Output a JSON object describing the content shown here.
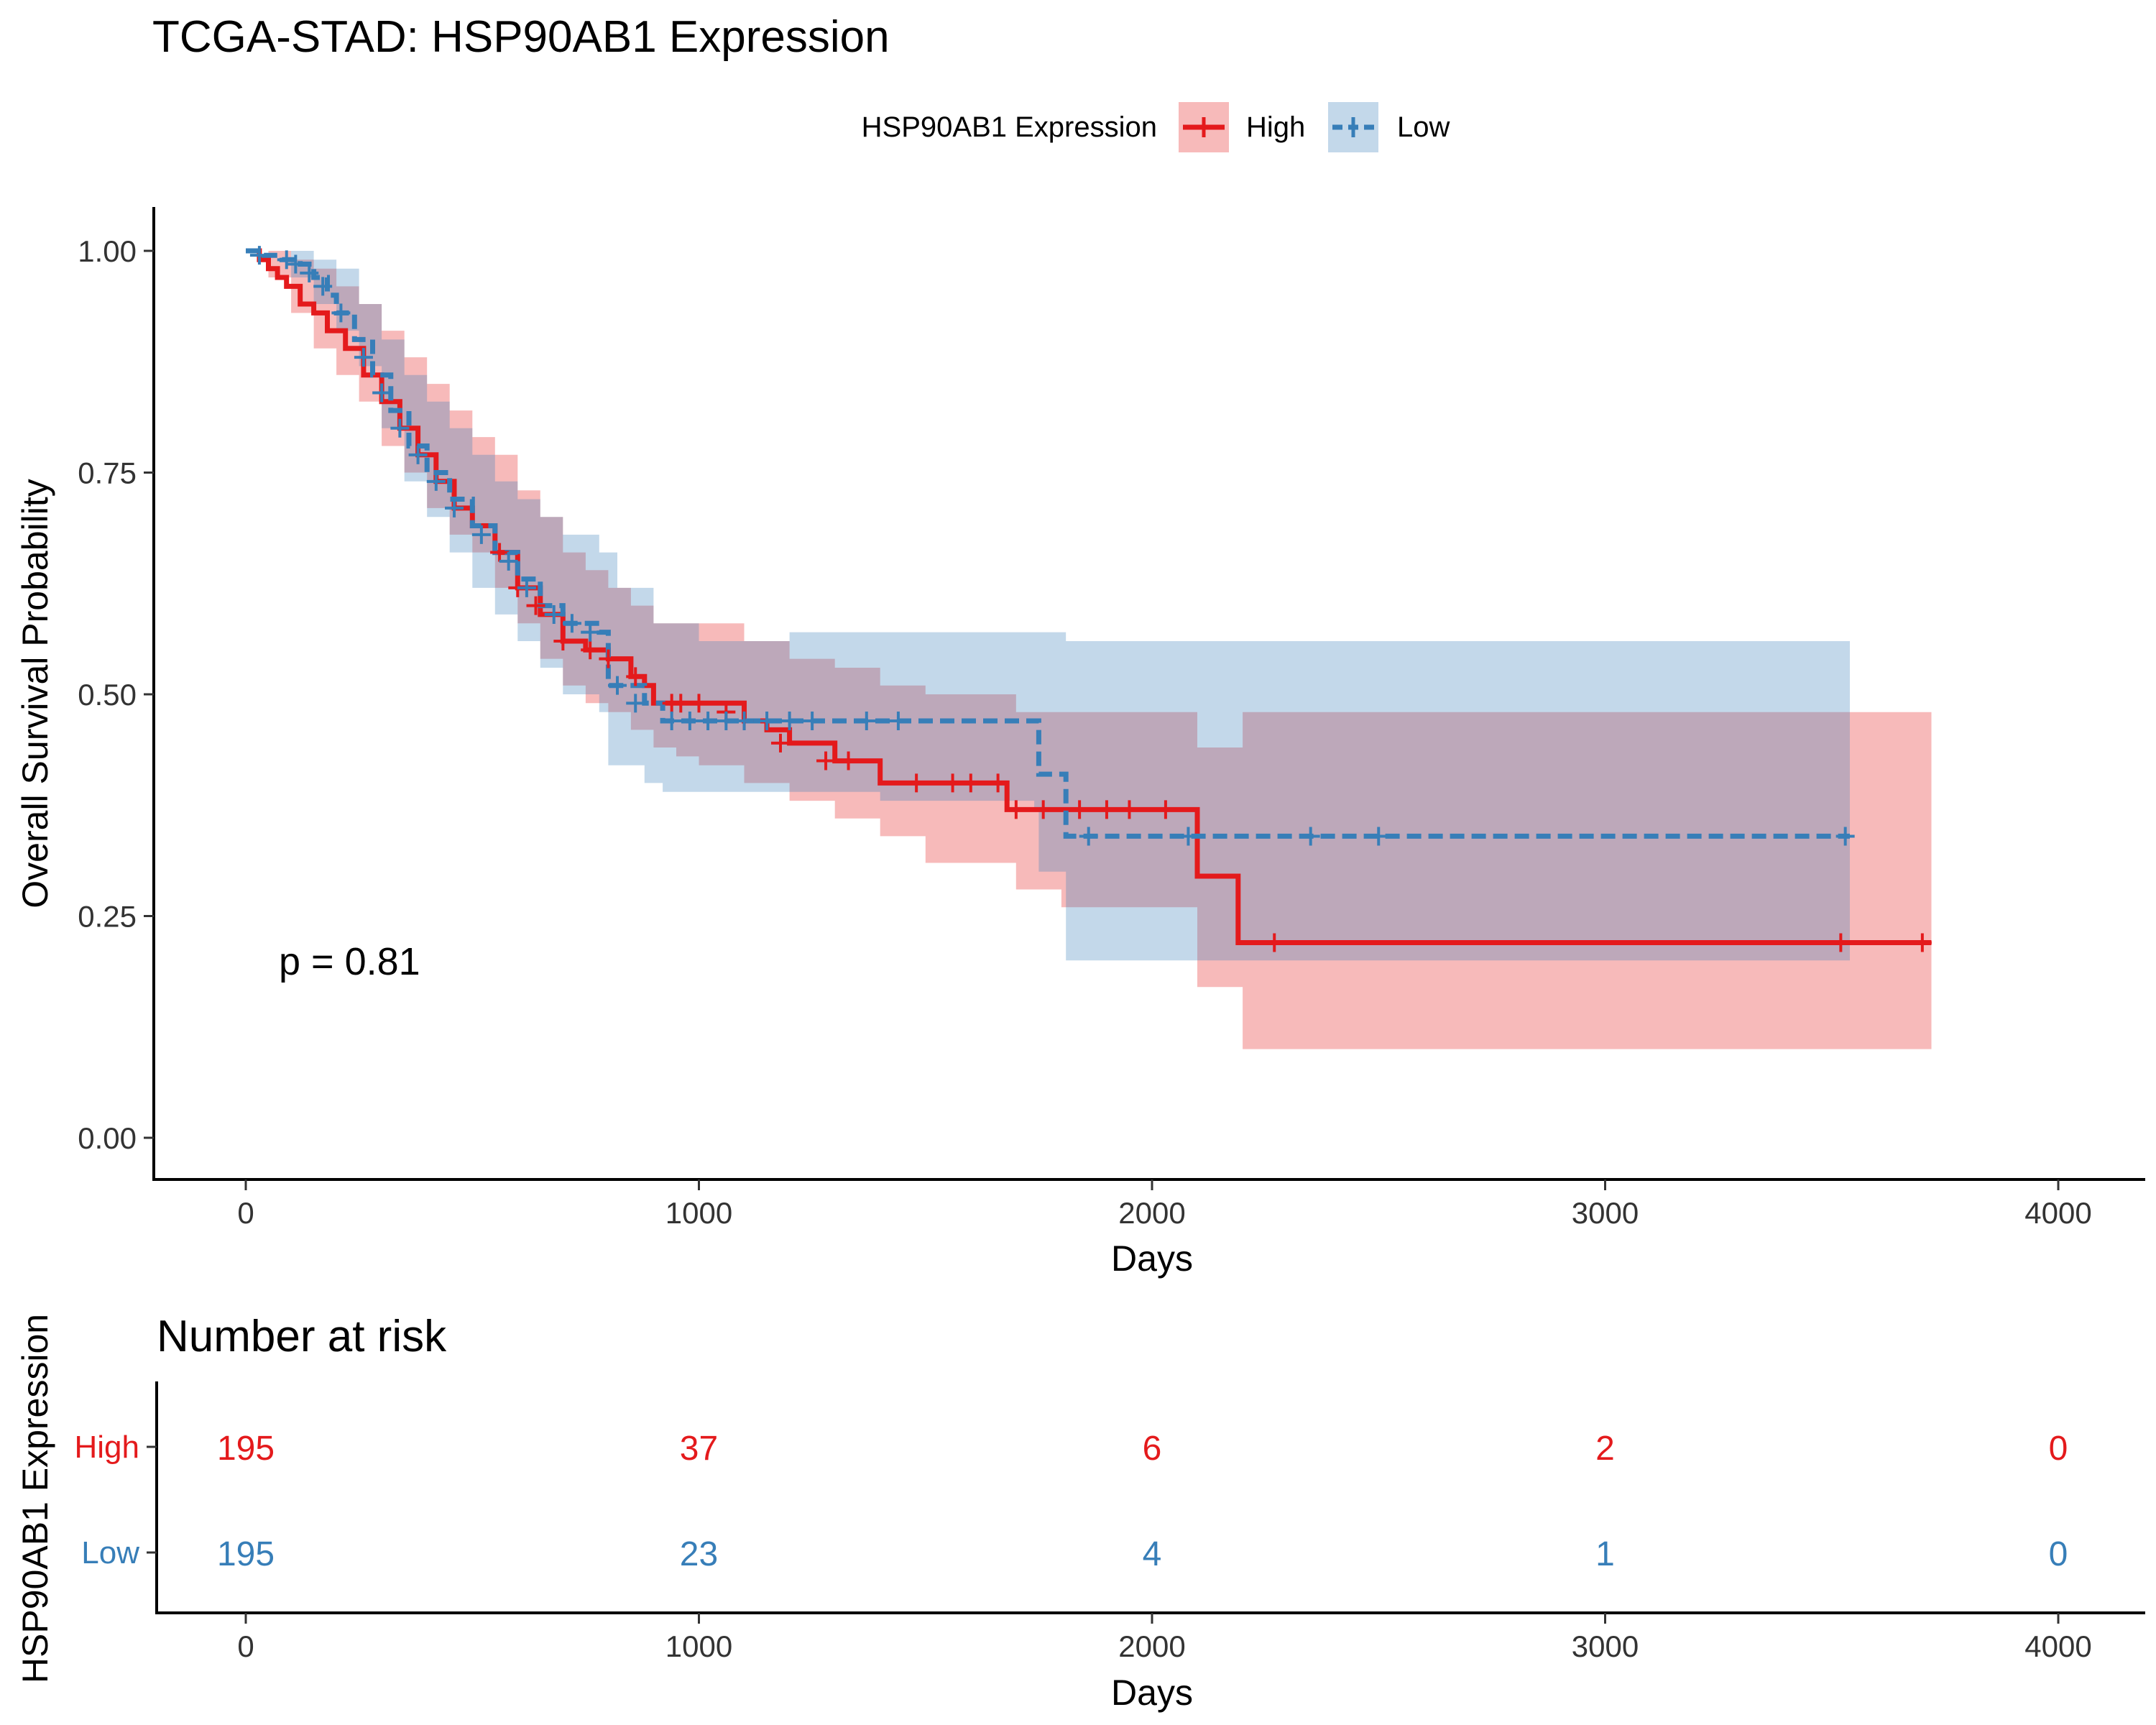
{
  "chart_data": [
    {
      "type": "line",
      "subtype": "kaplan-meier",
      "title": "TCGA-STAD: HSP90AB1 Expression",
      "xlabel": "Days",
      "ylabel": "Overall Survival Probability",
      "xlim": [
        -200,
        4200
      ],
      "ylim": [
        -0.05,
        1.05
      ],
      "xticks": [
        0,
        1000,
        2000,
        3000,
        4000
      ],
      "yticks": [
        "0.00",
        "0.25",
        "0.50",
        "0.75",
        "1.00"
      ],
      "grid": false,
      "legend": {
        "title": "HSP90AB1 Expression",
        "position": "top",
        "entries": [
          "High",
          "Low"
        ]
      },
      "annotation": "p = 0.81",
      "series": [
        {
          "name": "High",
          "color": "#E41A1C",
          "line_style": "solid",
          "curve": [
            [
              0,
              1.0
            ],
            [
              30,
              0.99
            ],
            [
              50,
              0.98
            ],
            [
              70,
              0.97
            ],
            [
              90,
              0.96
            ],
            [
              120,
              0.94
            ],
            [
              150,
              0.93
            ],
            [
              180,
              0.91
            ],
            [
              220,
              0.89
            ],
            [
              260,
              0.86
            ],
            [
              300,
              0.83
            ],
            [
              340,
              0.8
            ],
            [
              380,
              0.77
            ],
            [
              420,
              0.74
            ],
            [
              460,
              0.71
            ],
            [
              500,
              0.69
            ],
            [
              550,
              0.66
            ],
            [
              600,
              0.62
            ],
            [
              650,
              0.59
            ],
            [
              700,
              0.56
            ],
            [
              750,
              0.55
            ],
            [
              800,
              0.54
            ],
            [
              850,
              0.52
            ],
            [
              880,
              0.51
            ],
            [
              900,
              0.49
            ],
            [
              1000,
              0.49
            ],
            [
              1100,
              0.47
            ],
            [
              1150,
              0.46
            ],
            [
              1200,
              0.445
            ],
            [
              1300,
              0.425
            ],
            [
              1400,
              0.4
            ],
            [
              1500,
              0.4
            ],
            [
              1680,
              0.37
            ],
            [
              1800,
              0.37
            ],
            [
              2100,
              0.295
            ],
            [
              2190,
              0.22
            ],
            [
              2300,
              0.22
            ],
            [
              3000,
              0.22
            ],
            [
              3720,
              0.22
            ]
          ],
          "upper": [
            [
              0,
              1.0
            ],
            [
              50,
              1.0
            ],
            [
              100,
              0.99
            ],
            [
              150,
              0.98
            ],
            [
              200,
              0.96
            ],
            [
              250,
              0.94
            ],
            [
              300,
              0.91
            ],
            [
              350,
              0.88
            ],
            [
              400,
              0.85
            ],
            [
              450,
              0.82
            ],
            [
              500,
              0.79
            ],
            [
              550,
              0.77
            ],
            [
              600,
              0.73
            ],
            [
              650,
              0.7
            ],
            [
              700,
              0.66
            ],
            [
              750,
              0.64
            ],
            [
              800,
              0.62
            ],
            [
              850,
              0.6
            ],
            [
              900,
              0.58
            ],
            [
              950,
              0.58
            ],
            [
              1000,
              0.58
            ],
            [
              1100,
              0.56
            ],
            [
              1200,
              0.54
            ],
            [
              1300,
              0.53
            ],
            [
              1400,
              0.51
            ],
            [
              1500,
              0.5
            ],
            [
              1700,
              0.48
            ],
            [
              1800,
              0.48
            ],
            [
              2100,
              0.44
            ],
            [
              2200,
              0.48
            ],
            [
              3720,
              0.48
            ]
          ],
          "lower": [
            [
              0,
              1.0
            ],
            [
              50,
              0.97
            ],
            [
              100,
              0.93
            ],
            [
              150,
              0.89
            ],
            [
              200,
              0.86
            ],
            [
              250,
              0.83
            ],
            [
              300,
              0.78
            ],
            [
              350,
              0.75
            ],
            [
              400,
              0.71
            ],
            [
              450,
              0.68
            ],
            [
              500,
              0.66
            ],
            [
              550,
              0.62
            ],
            [
              600,
              0.58
            ],
            [
              650,
              0.54
            ],
            [
              700,
              0.51
            ],
            [
              750,
              0.49
            ],
            [
              800,
              0.48
            ],
            [
              850,
              0.46
            ],
            [
              900,
              0.44
            ],
            [
              950,
              0.43
            ],
            [
              1000,
              0.42
            ],
            [
              1100,
              0.4
            ],
            [
              1200,
              0.38
            ],
            [
              1300,
              0.36
            ],
            [
              1400,
              0.34
            ],
            [
              1500,
              0.31
            ],
            [
              1700,
              0.28
            ],
            [
              1800,
              0.26
            ],
            [
              2100,
              0.17
            ],
            [
              2200,
              0.1
            ],
            [
              3720,
              0.1
            ]
          ],
          "censored": [
            [
              560,
              0.66
            ],
            [
              600,
              0.62
            ],
            [
              640,
              0.6
            ],
            [
              700,
              0.56
            ],
            [
              760,
              0.55
            ],
            [
              800,
              0.54
            ],
            [
              860,
              0.52
            ],
            [
              940,
              0.49
            ],
            [
              960,
              0.49
            ],
            [
              1000,
              0.49
            ],
            [
              1060,
              0.48
            ],
            [
              1100,
              0.47
            ],
            [
              1180,
              0.445
            ],
            [
              1280,
              0.425
            ],
            [
              1330,
              0.425
            ],
            [
              1480,
              0.4
            ],
            [
              1560,
              0.4
            ],
            [
              1600,
              0.4
            ],
            [
              1660,
              0.4
            ],
            [
              1700,
              0.37
            ],
            [
              1760,
              0.37
            ],
            [
              1840,
              0.37
            ],
            [
              1900,
              0.37
            ],
            [
              1950,
              0.37
            ],
            [
              2030,
              0.37
            ],
            [
              2270,
              0.22
            ],
            [
              3520,
              0.22
            ],
            [
              3700,
              0.22
            ]
          ]
        },
        {
          "name": "Low",
          "color": "#377EB8",
          "line_style": "dashed",
          "curve": [
            [
              0,
              1.0
            ],
            [
              40,
              0.995
            ],
            [
              80,
              0.99
            ],
            [
              120,
              0.985
            ],
            [
              150,
              0.97
            ],
            [
              180,
              0.95
            ],
            [
              200,
              0.93
            ],
            [
              240,
              0.9
            ],
            [
              280,
              0.86
            ],
            [
              320,
              0.82
            ],
            [
              360,
              0.78
            ],
            [
              400,
              0.75
            ],
            [
              450,
              0.72
            ],
            [
              500,
              0.69
            ],
            [
              550,
              0.66
            ],
            [
              600,
              0.63
            ],
            [
              650,
              0.6
            ],
            [
              700,
              0.58
            ],
            [
              780,
              0.57
            ],
            [
              800,
              0.51
            ],
            [
              880,
              0.49
            ],
            [
              920,
              0.47
            ],
            [
              1000,
              0.47
            ],
            [
              1200,
              0.47
            ],
            [
              1400,
              0.47
            ],
            [
              1740,
              0.47
            ],
            [
              1750,
              0.41
            ],
            [
              1810,
              0.34
            ],
            [
              2000,
              0.34
            ],
            [
              2500,
              0.34
            ],
            [
              3540,
              0.34
            ]
          ],
          "upper": [
            [
              0,
              1.0
            ],
            [
              100,
              1.0
            ],
            [
              150,
              0.99
            ],
            [
              200,
              0.98
            ],
            [
              250,
              0.94
            ],
            [
              300,
              0.9
            ],
            [
              350,
              0.86
            ],
            [
              400,
              0.83
            ],
            [
              450,
              0.8
            ],
            [
              500,
              0.77
            ],
            [
              550,
              0.74
            ],
            [
              600,
              0.72
            ],
            [
              650,
              0.7
            ],
            [
              700,
              0.68
            ],
            [
              780,
              0.66
            ],
            [
              820,
              0.62
            ],
            [
              900,
              0.58
            ],
            [
              1000,
              0.56
            ],
            [
              1100,
              0.56
            ],
            [
              1200,
              0.57
            ],
            [
              1400,
              0.57
            ],
            [
              1740,
              0.57
            ],
            [
              1810,
              0.56
            ],
            [
              2000,
              0.56
            ],
            [
              2500,
              0.56
            ],
            [
              3540,
              0.56
            ]
          ],
          "lower": [
            [
              0,
              1.0
            ],
            [
              100,
              0.97
            ],
            [
              150,
              0.94
            ],
            [
              200,
              0.91
            ],
            [
              250,
              0.87
            ],
            [
              300,
              0.8
            ],
            [
              350,
              0.74
            ],
            [
              400,
              0.7
            ],
            [
              450,
              0.66
            ],
            [
              500,
              0.62
            ],
            [
              550,
              0.59
            ],
            [
              600,
              0.56
            ],
            [
              650,
              0.53
            ],
            [
              700,
              0.5
            ],
            [
              780,
              0.48
            ],
            [
              800,
              0.42
            ],
            [
              880,
              0.4
            ],
            [
              920,
              0.39
            ],
            [
              1000,
              0.39
            ],
            [
              1100,
              0.39
            ],
            [
              1400,
              0.38
            ],
            [
              1740,
              0.37
            ],
            [
              1750,
              0.3
            ],
            [
              1810,
              0.2
            ],
            [
              2000,
              0.2
            ],
            [
              3540,
              0.2
            ]
          ],
          "censored": [
            [
              30,
              0.995
            ],
            [
              90,
              0.99
            ],
            [
              110,
              0.985
            ],
            [
              140,
              0.975
            ],
            [
              170,
              0.96
            ],
            [
              210,
              0.93
            ],
            [
              260,
              0.88
            ],
            [
              300,
              0.84
            ],
            [
              340,
              0.8
            ],
            [
              380,
              0.77
            ],
            [
              420,
              0.74
            ],
            [
              460,
              0.71
            ],
            [
              520,
              0.68
            ],
            [
              580,
              0.65
            ],
            [
              620,
              0.62
            ],
            [
              680,
              0.59
            ],
            [
              720,
              0.58
            ],
            [
              760,
              0.57
            ],
            [
              820,
              0.51
            ],
            [
              860,
              0.49
            ],
            [
              940,
              0.47
            ],
            [
              980,
              0.47
            ],
            [
              1020,
              0.47
            ],
            [
              1060,
              0.47
            ],
            [
              1100,
              0.47
            ],
            [
              1150,
              0.47
            ],
            [
              1200,
              0.47
            ],
            [
              1250,
              0.47
            ],
            [
              1370,
              0.47
            ],
            [
              1440,
              0.47
            ],
            [
              1860,
              0.34
            ],
            [
              2080,
              0.34
            ],
            [
              2350,
              0.34
            ],
            [
              2500,
              0.34
            ],
            [
              3530,
              0.34
            ]
          ]
        }
      ]
    },
    {
      "type": "table",
      "title": "Number at risk",
      "xlabel": "Days",
      "ylabel": "HSP90AB1 Expression",
      "xlim": [
        -200,
        4200
      ],
      "xticks": [
        0,
        1000,
        2000,
        3000,
        4000
      ],
      "times": [
        0,
        1000,
        2000,
        3000,
        4000
      ],
      "rows": [
        {
          "name": "High",
          "color": "#E41A1C",
          "values": [
            195,
            37,
            6,
            2,
            0
          ]
        },
        {
          "name": "Low",
          "color": "#377EB8",
          "values": [
            195,
            23,
            4,
            1,
            0
          ]
        }
      ]
    }
  ]
}
